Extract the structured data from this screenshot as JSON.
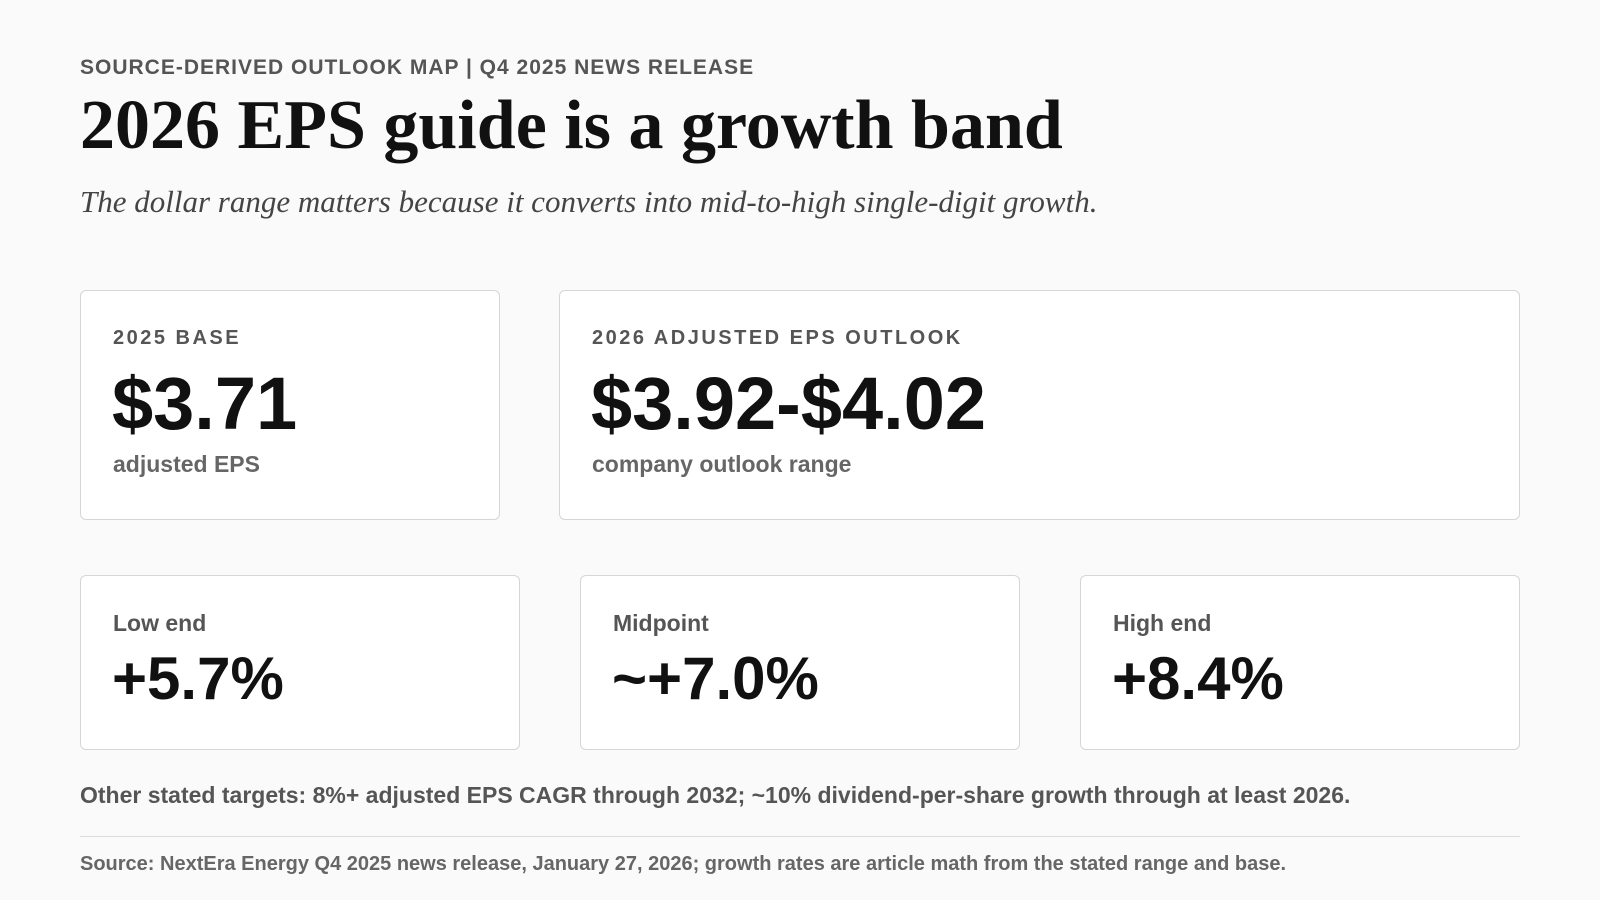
{
  "header": {
    "kicker": "SOURCE-DERIVED OUTLOOK MAP | Q4 2025 NEWS RELEASE",
    "title": "2026 EPS guide is a growth band",
    "subtitle": "The dollar range matters because it converts into mid-to-high single-digit growth."
  },
  "cards": [
    {
      "label": "2025 BASE",
      "value": "$3.71",
      "caption": "adjusted EPS"
    },
    {
      "label": "2026 ADJUSTED EPS OUTLOOK",
      "value": "$3.92-$4.02",
      "caption": "company outlook range"
    }
  ],
  "growth": [
    {
      "label": "Low end",
      "value": "+5.7%"
    },
    {
      "label": "Midpoint",
      "value": "~+7.0%"
    },
    {
      "label": "High end",
      "value": "+8.4%"
    }
  ],
  "note": "Other stated targets: 8%+ adjusted EPS CAGR through 2032; ~10% dividend-per-share growth through at least 2026.",
  "source": "Source: NextEra Energy Q4 2025 news release, January 27, 2026; growth rates are article math from the stated range and base."
}
